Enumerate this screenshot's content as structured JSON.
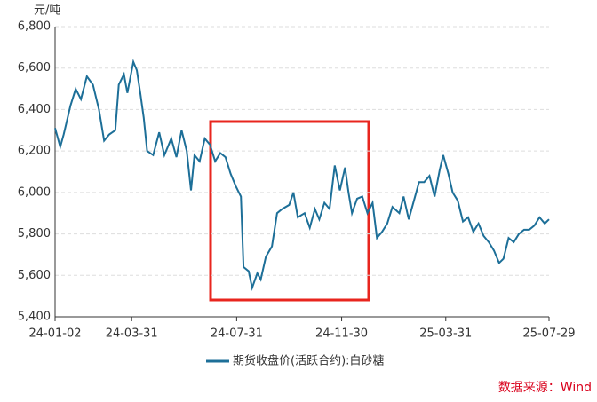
{
  "chart_data": {
    "type": "line",
    "y_label": "元/吨",
    "source": "数据来源：Wind",
    "xlim": [
      "24-01-02",
      "25-07-29"
    ],
    "xticks": [
      "24-01-02",
      "24-03-31",
      "24-07-31",
      "24-11-30",
      "25-03-31",
      "25-07-29"
    ],
    "ylim": [
      5400,
      6800
    ],
    "yticks": [
      {
        "value": 5400,
        "label": "5,400"
      },
      {
        "value": 5600,
        "label": "5,600"
      },
      {
        "value": 5800,
        "label": "5,800"
      },
      {
        "value": 6000,
        "label": "6,000"
      },
      {
        "value": 6200,
        "label": "6,200"
      },
      {
        "value": 6400,
        "label": "6,400"
      },
      {
        "value": 6600,
        "label": "6,600"
      },
      {
        "value": 6800,
        "label": "6,800"
      }
    ],
    "grid": true,
    "x": [
      "24-01-02",
      "24-01-08",
      "24-01-12",
      "24-01-20",
      "24-01-26",
      "24-02-01",
      "24-02-08",
      "24-02-15",
      "24-02-22",
      "24-02-28",
      "24-03-05",
      "24-03-12",
      "24-03-16",
      "24-03-22",
      "24-03-26",
      "24-04-02",
      "24-04-06",
      "24-04-10",
      "24-04-14",
      "24-04-18",
      "24-04-25",
      "24-05-02",
      "24-05-08",
      "24-05-16",
      "24-05-22",
      "24-05-28",
      "24-06-03",
      "24-06-08",
      "24-06-12",
      "24-06-18",
      "24-06-24",
      "24-06-30",
      "24-07-06",
      "24-07-12",
      "24-07-18",
      "24-07-24",
      "24-07-30",
      "24-08-05",
      "24-08-08",
      "24-08-14",
      "24-08-18",
      "24-08-24",
      "24-08-28",
      "24-09-03",
      "24-09-10",
      "24-09-16",
      "24-09-22",
      "24-09-30",
      "24-10-05",
      "24-10-10",
      "24-10-18",
      "24-10-24",
      "24-10-30",
      "24-11-04",
      "24-11-10",
      "24-11-16",
      "24-11-22",
      "24-11-28",
      "24-12-04",
      "24-12-08",
      "24-12-12",
      "24-12-18",
      "24-12-24",
      "24-12-30",
      "25-01-05",
      "25-01-10",
      "25-01-16",
      "25-01-22",
      "25-01-28",
      "25-02-05",
      "25-02-10",
      "25-02-16",
      "25-02-22",
      "25-02-28",
      "25-03-06",
      "25-03-12",
      "25-03-18",
      "25-03-24",
      "25-03-28",
      "25-04-03",
      "25-04-08",
      "25-04-14",
      "25-04-20",
      "25-04-26",
      "25-05-02",
      "25-05-08",
      "25-05-14",
      "25-05-20",
      "25-05-26",
      "25-06-01",
      "25-06-06",
      "25-06-12",
      "25-06-18",
      "25-06-24",
      "25-06-30",
      "25-07-06",
      "25-07-12",
      "25-07-18",
      "25-07-24",
      "25-07-29"
    ],
    "series": [
      {
        "name": "期货收盘价(活跃合约):白砂糖",
        "color": "#1d6f98",
        "values": [
          6310,
          6220,
          6280,
          6420,
          6500,
          6450,
          6560,
          6520,
          6400,
          6250,
          6280,
          6300,
          6520,
          6570,
          6480,
          6630,
          6590,
          6480,
          6360,
          6200,
          6180,
          6290,
          6180,
          6260,
          6170,
          6300,
          6200,
          6010,
          6180,
          6150,
          6260,
          6230,
          6150,
          6190,
          6170,
          6090,
          6030,
          5980,
          5640,
          5620,
          5540,
          5610,
          5580,
          5690,
          5740,
          5900,
          5920,
          5940,
          6000,
          5880,
          5900,
          5830,
          5920,
          5870,
          5950,
          5920,
          6130,
          6010,
          6120,
          6000,
          5900,
          5970,
          5980,
          5900,
          5950,
          5780,
          5810,
          5850,
          5930,
          5900,
          5980,
          5870,
          5960,
          6050,
          6050,
          6080,
          5980,
          6110,
          6180,
          6090,
          6000,
          5960,
          5860,
          5880,
          5810,
          5850,
          5790,
          5760,
          5720,
          5660,
          5680,
          5780,
          5760,
          5800,
          5820,
          5820,
          5840,
          5880,
          5850,
          5870
        ]
      }
    ]
  }
}
